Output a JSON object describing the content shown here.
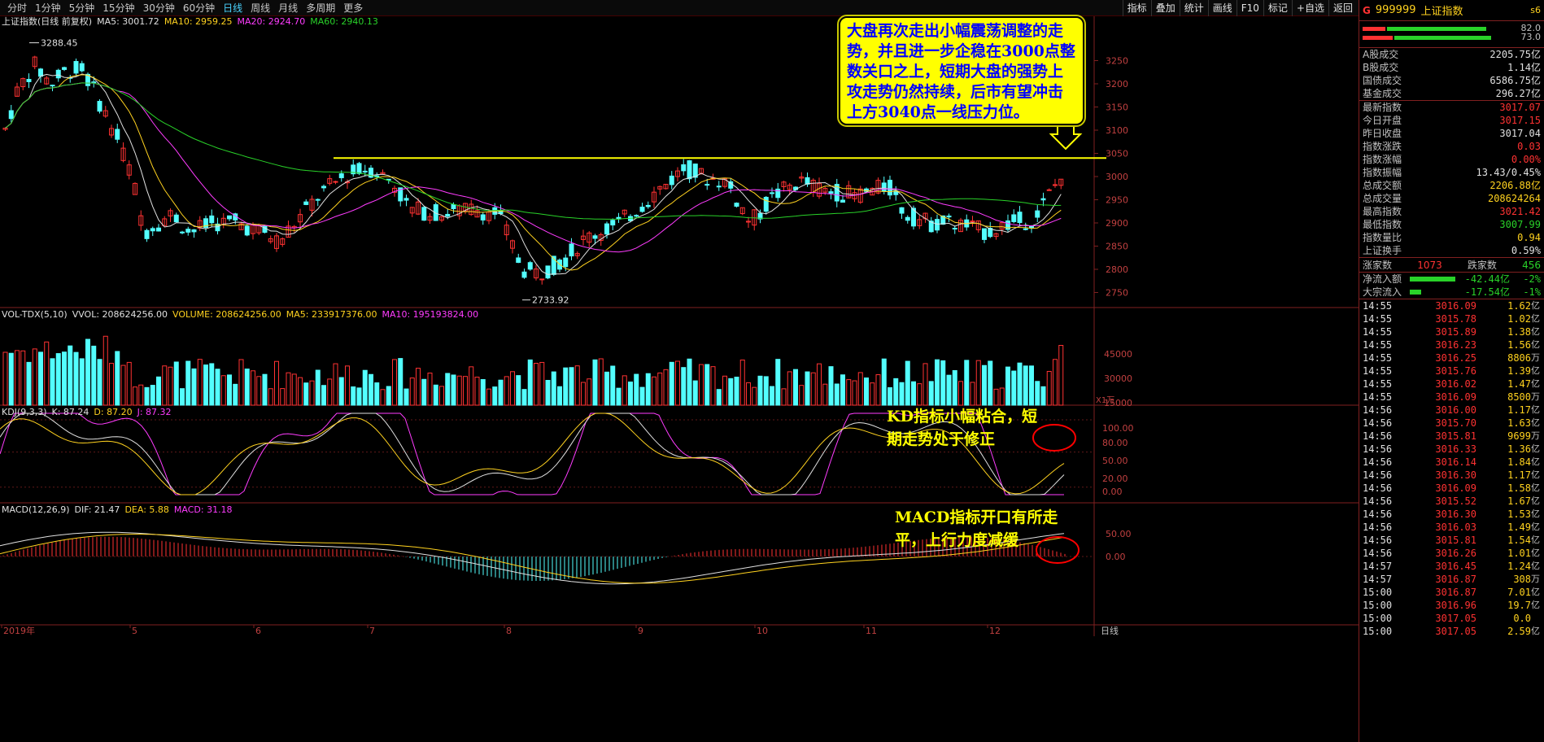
{
  "periods": [
    "分时",
    "1分钟",
    "5分钟",
    "15分钟",
    "30分钟",
    "60分钟",
    "日线",
    "周线",
    "月线",
    "多周期",
    "更多"
  ],
  "period_active": "日线",
  "toolbar": [
    "指标",
    "叠加",
    "统计",
    "画线",
    "F10",
    "标记",
    "+自选",
    "返回"
  ],
  "main_header": {
    "title": "上证指数(日线 前复权)",
    "ma5": "MA5: 3001.72",
    "ma10": "MA10: 2959.25",
    "ma20": "MA20: 2924.70",
    "ma60": "MA60: 2940.13"
  },
  "vol_header": {
    "name": "VOL-TDX(5,10)",
    "vvol": "VVOL: 208624256.00",
    "volume": "VOLUME: 208624256.00",
    "ma5": "MA5: 233917376.00",
    "ma10": "MA10: 195193824.00"
  },
  "kdj_header": {
    "name": "KDJ(9,3,3)",
    "k": "K: 87.24",
    "d": "D: 87.20",
    "j": "J: 87.32"
  },
  "macd_header": {
    "name": "MACD(12,26,9)",
    "dif": "DIF: 21.47",
    "dea": "DEA: 5.88",
    "macd": "MACD: 31.18"
  },
  "price_axis": [
    "3250",
    "3200",
    "3150",
    "3100",
    "3050",
    "3000",
    "2950",
    "2900",
    "2850",
    "2800",
    "2750"
  ],
  "vol_axis": [
    "45000",
    "30000",
    "15000"
  ],
  "vol_unit": "X1万",
  "kdj_axis": [
    "100.00",
    "80.00",
    "50.00",
    "20.00",
    "0.00"
  ],
  "macd_axis": [
    "50.00",
    "0.00"
  ],
  "x_labels": [
    "2019年",
    "5",
    "6",
    "7",
    "8",
    "9",
    "10",
    "11",
    "12"
  ],
  "axis_corner": "日线",
  "high_label": "3288.45",
  "low_label": "2733.92",
  "annotation": "大盘再次走出小幅震荡调整的走势，并且进一步企稳在3000点整数关口之上，短期大盘的强势上攻走势仍然持续，后市有望冲击上方3040点一线压力位。",
  "kd_note": [
    "KD指标小幅粘合，短",
    "期走势处于修正"
  ],
  "macd_note": [
    "MACD指标开口有所走",
    "平，上行力度减缓"
  ],
  "quote": {
    "prefix": "G",
    "code": "999999",
    "name": "上证指数",
    "extra": "s6",
    "ratio1": "82.0",
    "ratio2": "73.0",
    "ratio1_fill": 0.82,
    "ratio2_fill": 0.73,
    "rows1": [
      {
        "k": "A股成交",
        "v": "2205.75亿",
        "c": "#e0e0e0"
      },
      {
        "k": "B股成交",
        "v": "1.14亿",
        "c": "#e0e0e0"
      },
      {
        "k": "国债成交",
        "v": "6586.75亿",
        "c": "#e0e0e0"
      },
      {
        "k": "基金成交",
        "v": "296.27亿",
        "c": "#e0e0e0"
      }
    ],
    "rows2": [
      {
        "k": "最新指数",
        "v": "3017.07",
        "c": "#ff3232"
      },
      {
        "k": "今日开盘",
        "v": "3017.15",
        "c": "#ff3232"
      },
      {
        "k": "昨日收盘",
        "v": "3017.04",
        "c": "#e0e0e0"
      },
      {
        "k": "指数涨跌",
        "v": "0.03",
        "c": "#ff3232"
      },
      {
        "k": "指数涨幅",
        "v": "0.00%",
        "c": "#ff3232"
      },
      {
        "k": "指数振幅",
        "v": "13.43/0.45%",
        "c": "#e0e0e0"
      },
      {
        "k": "总成交额",
        "v": "2206.88亿",
        "c": "#ffd21f"
      },
      {
        "k": "总成交量",
        "v": "208624264",
        "c": "#ffd21f"
      },
      {
        "k": "最高指数",
        "v": "3021.42",
        "c": "#ff3232"
      },
      {
        "k": "最低指数",
        "v": "3007.99",
        "c": "#29d229"
      },
      {
        "k": "指数量比",
        "v": "0.94",
        "c": "#ffd21f"
      },
      {
        "k": "上证换手",
        "v": "0.59%",
        "c": "#e0e0e0"
      }
    ],
    "up_label": "涨家数",
    "up_count": "1073",
    "down_label": "跌家数",
    "down_count": "456",
    "flows": [
      {
        "k": "净流入额",
        "v": "-42.44亿",
        "pc": "-2%",
        "w": 56
      },
      {
        "k": "大宗流入",
        "v": "-17.54亿",
        "pc": "-1%",
        "w": 14
      }
    ],
    "ticks": [
      {
        "t": "14:55",
        "p": "3016.09",
        "v": "1.62",
        "u": "亿"
      },
      {
        "t": "14:55",
        "p": "3015.78",
        "v": "1.02",
        "u": "亿"
      },
      {
        "t": "14:55",
        "p": "3015.89",
        "v": "1.38",
        "u": "亿"
      },
      {
        "t": "14:55",
        "p": "3016.23",
        "v": "1.56",
        "u": "亿"
      },
      {
        "t": "14:55",
        "p": "3016.25",
        "v": "8806",
        "u": "万"
      },
      {
        "t": "14:55",
        "p": "3015.76",
        "v": "1.39",
        "u": "亿"
      },
      {
        "t": "14:55",
        "p": "3016.02",
        "v": "1.47",
        "u": "亿"
      },
      {
        "t": "14:55",
        "p": "3016.09",
        "v": "8500",
        "u": "万"
      },
      {
        "t": "14:56",
        "p": "3016.00",
        "v": "1.17",
        "u": "亿"
      },
      {
        "t": "14:56",
        "p": "3015.70",
        "v": "1.63",
        "u": "亿"
      },
      {
        "t": "14:56",
        "p": "3015.81",
        "v": "9699",
        "u": "万"
      },
      {
        "t": "14:56",
        "p": "3016.33",
        "v": "1.36",
        "u": "亿"
      },
      {
        "t": "14:56",
        "p": "3016.14",
        "v": "1.84",
        "u": "亿"
      },
      {
        "t": "14:56",
        "p": "3016.30",
        "v": "1.17",
        "u": "亿"
      },
      {
        "t": "14:56",
        "p": "3016.09",
        "v": "1.58",
        "u": "亿"
      },
      {
        "t": "14:56",
        "p": "3015.52",
        "v": "1.67",
        "u": "亿"
      },
      {
        "t": "14:56",
        "p": "3016.30",
        "v": "1.53",
        "u": "亿"
      },
      {
        "t": "14:56",
        "p": "3016.03",
        "v": "1.49",
        "u": "亿"
      },
      {
        "t": "14:56",
        "p": "3015.81",
        "v": "1.54",
        "u": "亿"
      },
      {
        "t": "14:56",
        "p": "3016.26",
        "v": "1.01",
        "u": "亿"
      },
      {
        "t": "14:57",
        "p": "3016.45",
        "v": "1.24",
        "u": "亿"
      },
      {
        "t": "14:57",
        "p": "3016.87",
        "v": "308",
        "u": "万"
      },
      {
        "t": "15:00",
        "p": "3016.87",
        "v": "7.01",
        "u": "亿"
      },
      {
        "t": "15:00",
        "p": "3016.96",
        "v": "19.7",
        "u": "亿"
      },
      {
        "t": "15:00",
        "p": "3017.05",
        "v": "0.0",
        "u": ""
      },
      {
        "t": "15:00",
        "p": "3017.05",
        "v": "2.59",
        "u": "亿"
      }
    ]
  },
  "colors": {
    "up": "#ff3232",
    "down": "#53ffff",
    "ma5": "#e0e0e0",
    "ma10": "#ffd21f",
    "ma20": "#ff3cff",
    "ma60": "#29d229",
    "grid": "#802020"
  }
}
